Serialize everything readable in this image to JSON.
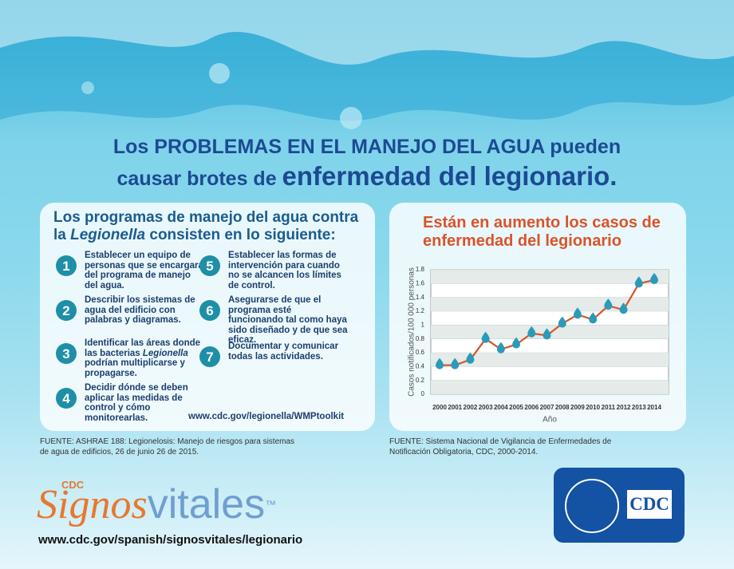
{
  "header": {
    "title_line1": [
      "Los ",
      "PROBLEMAS EN EL MANEJO DEL AGUA",
      "  pueden"
    ],
    "title_line2": [
      "causar brotes de ",
      "enfermedad del legionario."
    ]
  },
  "programs": {
    "heading_line1": [
      "Los programas de manejo del agua contra"
    ],
    "heading_line2": [
      "la ",
      "Legionella",
      " consisten en lo siguiente:"
    ],
    "steps": [
      {
        "number": 1,
        "text": [
          "Establecer un equipo de personas que se encargará del programa de manejo del agua."
        ]
      },
      {
        "number": 2,
        "text": [
          "Describir los sistemas de agua del edificio con palabras y diagramas."
        ]
      },
      {
        "number": 3,
        "text": [
          "Identificar las áreas donde las bacterias ",
          "Legionella",
          " podrían multiplicarse y propagarse."
        ]
      },
      {
        "number": 4,
        "text": [
          "Decidir dónde se deben aplicar las medidas de control y cómo monitorearlas."
        ]
      },
      {
        "number": 5,
        "text": [
          "Establecer las formas de intervención para cuando no se alcancen los límites de control."
        ]
      },
      {
        "number": 6,
        "text": [
          "Asegurarse de que el programa esté funcionando tal como haya sido diseñado y de que sea eficaz."
        ]
      },
      {
        "number": 7,
        "text": [
          "Documentar y comunicar todas las actividades."
        ]
      }
    ],
    "url": "www.cdc.gov/legionella/WMPtoolkit"
  },
  "chart_data": {
    "type": "line",
    "title": "Están en aumento los casos de enfermedad del legionario",
    "x_label": "Año",
    "y_label": "Casos notificados/100 000 personas",
    "categories": [
      "2000",
      "2001",
      "2002",
      "2003",
      "2004",
      "2005",
      "2006",
      "2007",
      "2008",
      "2009",
      "2010",
      "2011",
      "2012",
      "2013",
      "2014"
    ],
    "values": [
      0.42,
      0.42,
      0.5,
      0.8,
      0.65,
      0.72,
      0.88,
      0.85,
      1.02,
      1.15,
      1.08,
      1.28,
      1.22,
      1.6,
      1.65
    ],
    "color": "#d9542a",
    "marker_color": "#2a9bb8",
    "ylim": [
      0,
      1.8
    ],
    "yticks": [
      0,
      0.2,
      0.4,
      0.6,
      0.8,
      1,
      1.2,
      1.4,
      1.6,
      1.8
    ],
    "grid": true
  },
  "sources": {
    "left": "FUENTE: ASHRAE 188: Legionelosis: Manejo de riesgos para sistemas de agua de edificios, 26 de junio 26 de 2015.",
    "right": "FUENTE: Sistema Nacional de Vigilancia de Enfermedades de Notificación Obligatoria, CDC, 2000-2014."
  },
  "footer": {
    "cdc": "CDC",
    "brand": [
      "Signos",
      "vitales"
    ],
    "tm": "™",
    "url": "www.cdc.gov/spanish/signosvitales/legionario",
    "logo": "CDC"
  }
}
